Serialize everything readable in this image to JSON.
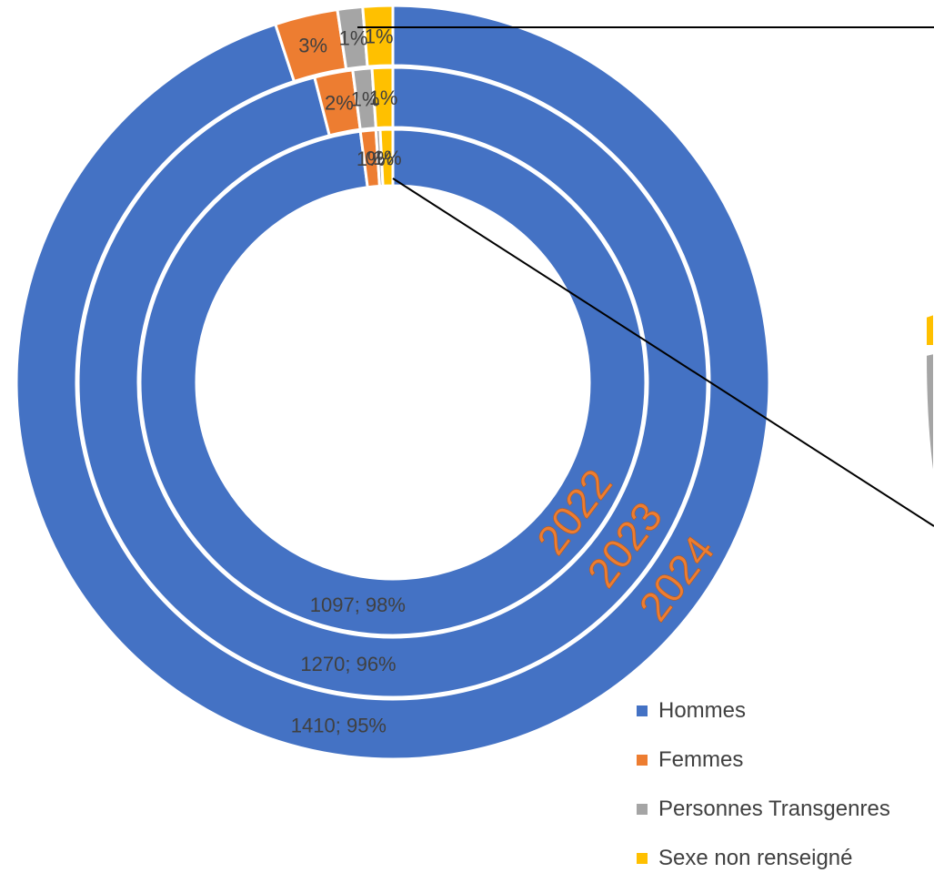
{
  "chart_data": {
    "type": "pie",
    "subtype": "nested-donut",
    "categories": [
      "Hommes",
      "Femmes",
      "Personnes Transgenres",
      "Sexe non renseigné"
    ],
    "colors": [
      "#4472C4",
      "#ED7D31",
      "#A5A5A5",
      "#FFC000"
    ],
    "series": [
      {
        "name": "2022",
        "values": [
          1097,
          11,
          3,
          9
        ],
        "labels": [
          "1097; 98%",
          "1%",
          "0%",
          "1%"
        ]
      },
      {
        "name": "2023",
        "values": [
          1270,
          26,
          13,
          14
        ],
        "labels": [
          "1270; 96%",
          "2%",
          "1%",
          "1%"
        ]
      },
      {
        "name": "2024",
        "values": [
          1410,
          40,
          16,
          19
        ],
        "labels": [
          "1410; 95%",
          "3%",
          "1%",
          "1%"
        ]
      }
    ],
    "legend_position": "bottom-right"
  },
  "legend": {
    "items": [
      {
        "label": "Hommes",
        "color": "#4472C4"
      },
      {
        "label": "Femmes",
        "color": "#ED7D31"
      },
      {
        "label": "Personnes Transgenres",
        "color": "#A5A5A5"
      },
      {
        "label": "Sexe non renseigné",
        "color": "#FFC000"
      }
    ]
  }
}
